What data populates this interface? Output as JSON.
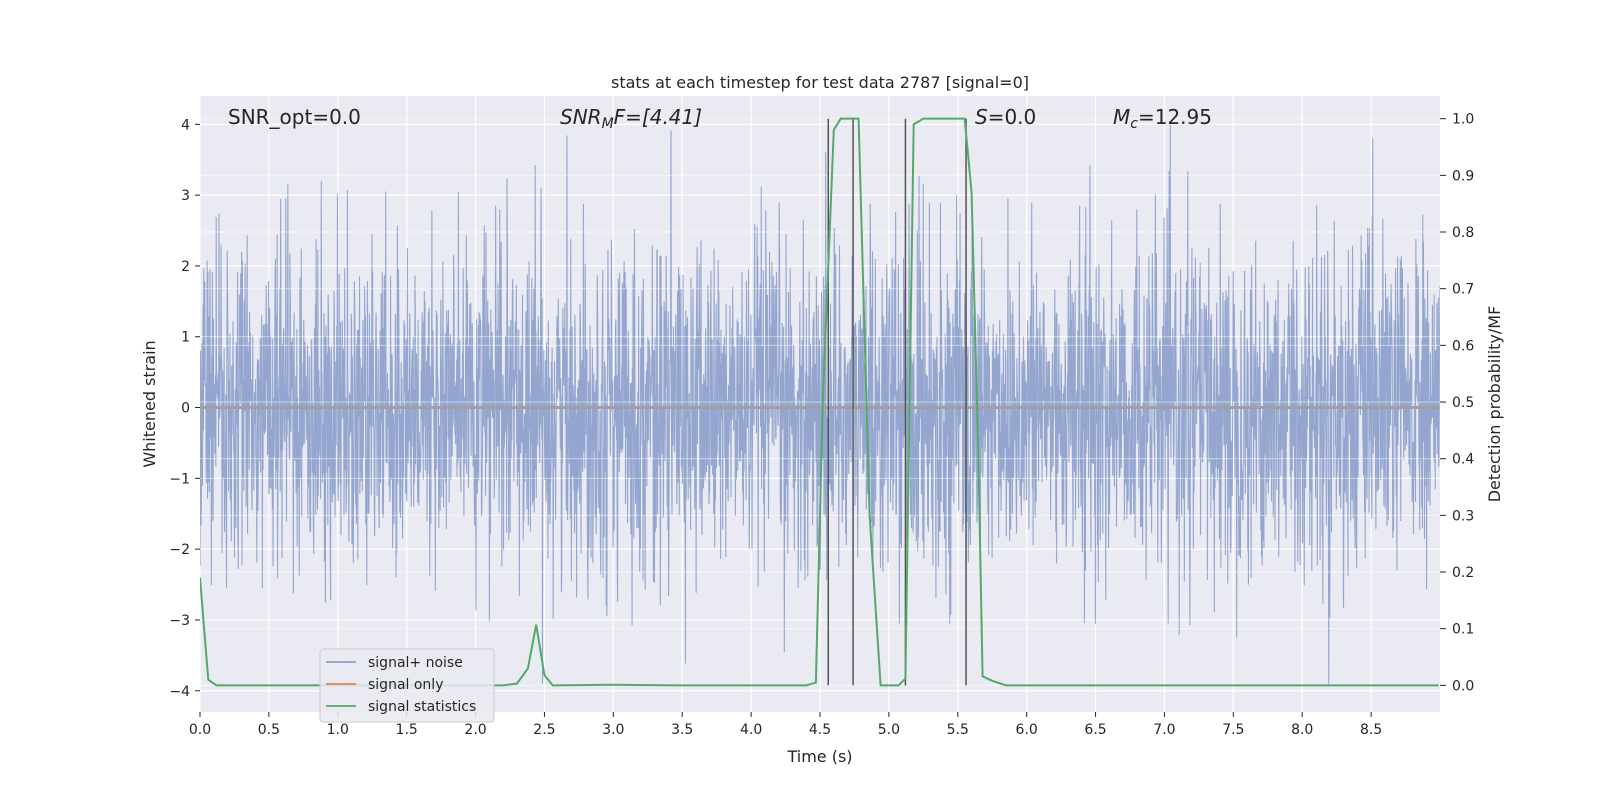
{
  "chart_data": {
    "type": "line",
    "title": "stats at each timestep for test data 2787 [signal=0]",
    "xlabel": "Time (s)",
    "ylabel": "Whitened strain",
    "y2label": "Detection probability/MF",
    "xlim": [
      0,
      9.0
    ],
    "ylim": [
      -4.3,
      4.4
    ],
    "y2lim": [
      -0.047,
      1.04
    ],
    "xticks": [
      "0.0",
      "0.5",
      "1.0",
      "1.5",
      "2.0",
      "2.5",
      "3.0",
      "3.5",
      "4.0",
      "4.5",
      "5.0",
      "5.5",
      "6.0",
      "6.5",
      "7.0",
      "7.5",
      "8.0",
      "8.5"
    ],
    "yticks": [
      "4",
      "3",
      "2",
      "1",
      "0",
      "−1",
      "−2",
      "−3",
      "−4"
    ],
    "y2ticks": [
      "1.0",
      "0.9",
      "0.8",
      "0.7",
      "0.6",
      "0.5",
      "0.4",
      "0.3",
      "0.2",
      "0.1",
      "0.0"
    ],
    "grid": true,
    "legend_position": "lower-left",
    "annotations": {
      "snr_opt": "SNR_opt=0.0",
      "snr_mf_base": "SNR",
      "snr_mf_sub": "M",
      "snr_mf_rest": "F=[4.41]",
      "s_italic": "S",
      "s_rest": "=0.0",
      "mc_base": "M",
      "mc_sub": "c",
      "mc_rest": "=12.95"
    },
    "series": [
      {
        "name": "signal+ noise",
        "color": "#8fa2cc",
        "description": "whitened strain noise, approx. Gaussian, roughly within [-3.9, 4.0]"
      },
      {
        "name": "signal only",
        "color": "#dd8452",
        "values_constant": 0
      },
      {
        "name": "signal statistics",
        "color": "#55a868",
        "x": [
          0.0,
          0.06,
          0.12,
          0.5,
          1.0,
          1.5,
          2.0,
          2.2,
          2.3,
          2.38,
          2.44,
          2.5,
          2.56,
          3.0,
          3.5,
          4.0,
          4.4,
          4.47,
          4.52,
          4.6,
          4.65,
          4.72,
          4.78,
          4.86,
          4.94,
          5.0,
          5.07,
          5.12,
          5.18,
          5.25,
          5.3,
          5.4,
          5.5,
          5.55,
          5.6,
          5.65,
          5.68,
          5.75,
          5.85,
          6.0,
          7.0,
          8.0,
          8.99
        ],
        "y": [
          0.19,
          0.01,
          0.0,
          0.0,
          0.0,
          0.0,
          0.0,
          0.0,
          0.003,
          0.03,
          0.107,
          0.018,
          0.0,
          0.001,
          0.0,
          0.0,
          0.0,
          0.005,
          0.5,
          0.98,
          1.0,
          1.0,
          1.0,
          0.3,
          0.0,
          0.0,
          0.0,
          0.012,
          0.99,
          1.0,
          1.0,
          1.0,
          1.0,
          1.0,
          0.87,
          0.4,
          0.016,
          0.008,
          0.0,
          0.0,
          0.0,
          0.0,
          0.0
        ]
      }
    ],
    "vertical_lines_x": [
      4.56,
      4.74,
      5.12,
      5.56
    ]
  }
}
